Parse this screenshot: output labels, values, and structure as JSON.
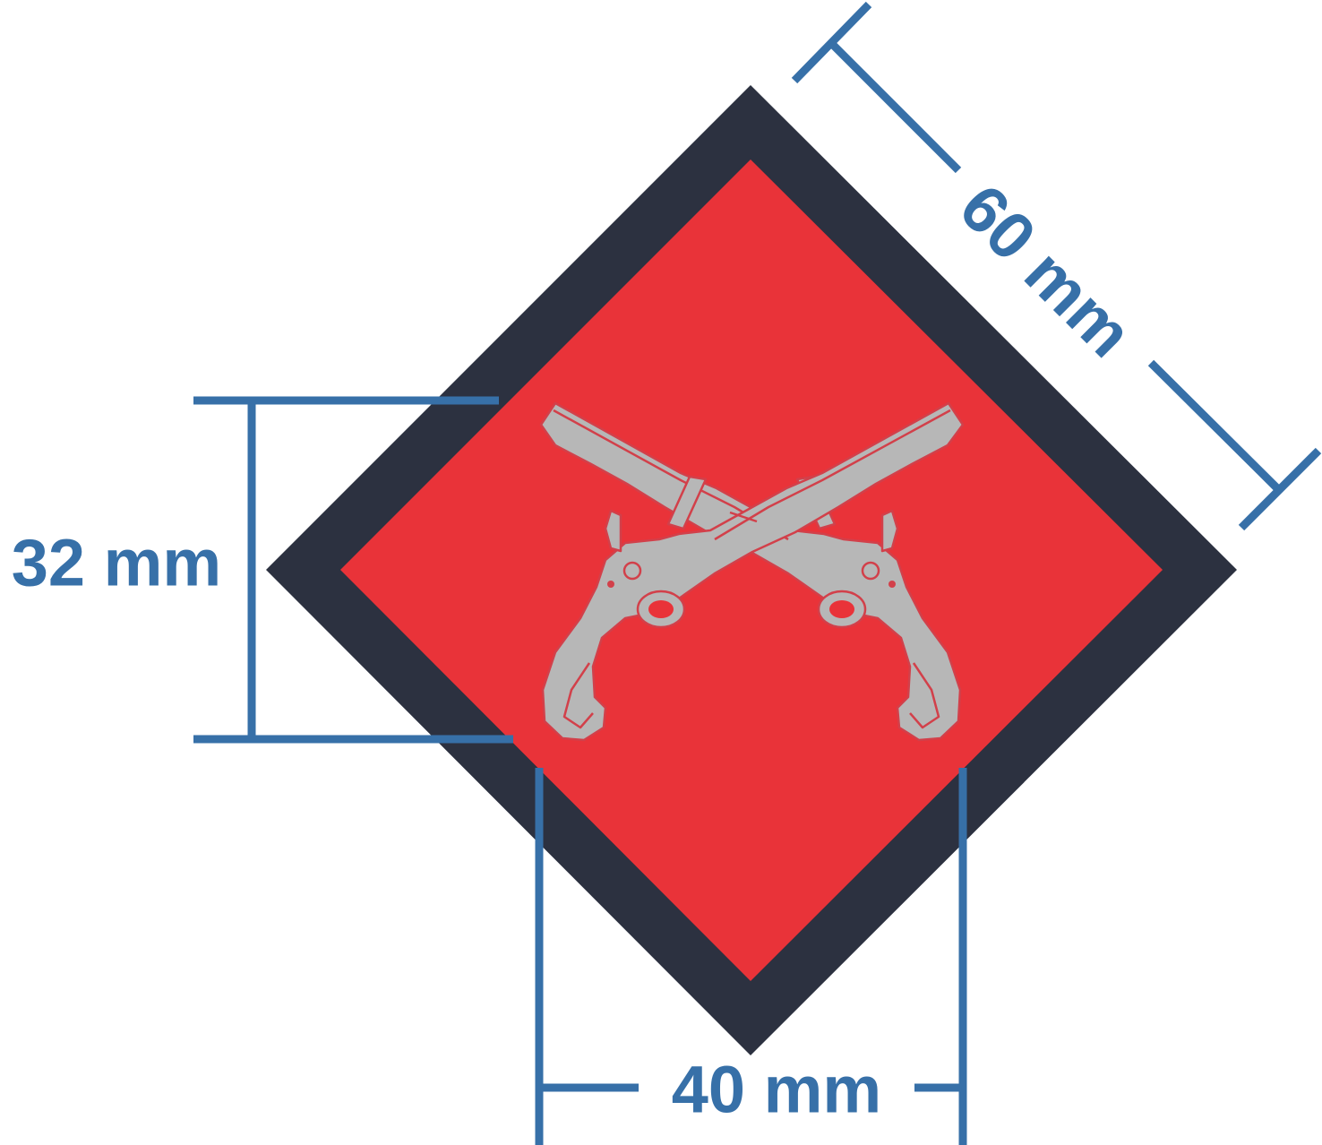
{
  "colors": {
    "dimension": "#3770a8",
    "border": "#2c3140",
    "field": "#e93339",
    "emblem": "#b7b7b7",
    "emblem_detail": "#d2404a",
    "background": "#ffffff"
  },
  "dimensions": {
    "diagonal_side": {
      "label": "60 mm"
    },
    "emblem_height": {
      "label": "32 mm"
    },
    "emblem_width": {
      "label": "40 mm"
    }
  },
  "emblem": {
    "icon": "crossed-flintlock-pistols-icon",
    "shape": "diamond"
  }
}
